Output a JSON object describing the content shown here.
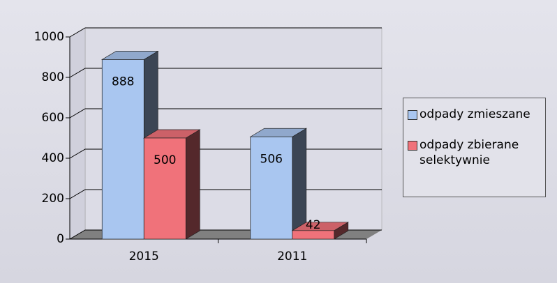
{
  "chart_data": {
    "type": "bar3d",
    "categories": [
      "2015",
      "2011"
    ],
    "series": [
      {
        "name": "odpady zmieszane",
        "color": "#a9c6f0",
        "values": [
          888,
          506
        ]
      },
      {
        "name": "odpady zbierane selektywnie",
        "color": "#f0727a",
        "values": [
          500,
          42
        ]
      }
    ],
    "ylim": [
      0,
      1000
    ],
    "yticks": [
      0,
      200,
      400,
      600,
      800,
      1000
    ],
    "grid": true,
    "legend": "right"
  }
}
